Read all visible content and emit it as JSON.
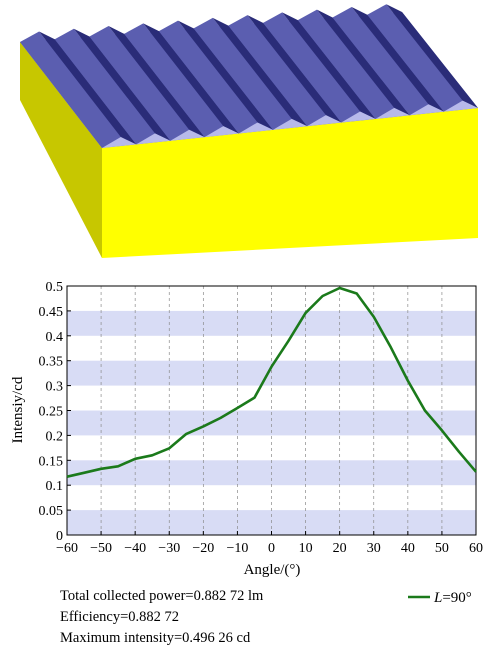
{
  "palette": {
    "grating_top": "#5b5eb0",
    "grating_groove_light": "#b7b9ea",
    "grating_groove_dark": "#2a2c78",
    "block_front": "#ffff00",
    "block_side": "#c7c700",
    "band_fill": "#d8dcf5",
    "line_color": "#1b7a1b"
  },
  "chart_data": {
    "type": "line",
    "xlabel": "Angle/(°)",
    "ylabel": "Intensiy/cd",
    "xlim": [
      -60,
      60
    ],
    "ylim": [
      0,
      0.5
    ],
    "xticks": [
      "-60",
      "-50",
      "-40",
      "-30",
      "-20",
      "-10",
      "0",
      "10",
      "20",
      "30",
      "40",
      "50",
      "60"
    ],
    "yticks": [
      "0",
      "0.05",
      "0.1",
      "0.15",
      "0.2",
      "0.25",
      "0.3",
      "0.35",
      "0.4",
      "0.45",
      "0.5"
    ],
    "grid": "alternating horizontal bands, vertical dashed lines",
    "legend_position": "bottom-right, below plot",
    "series": [
      {
        "name": "L=90°",
        "name_italic_part": "L",
        "name_rest": "=90°",
        "x": [
          -60,
          -55,
          -50,
          -45,
          -40,
          -35,
          -30,
          -25,
          -20,
          -15,
          -10,
          -5,
          0,
          5,
          10,
          15,
          20,
          25,
          30,
          35,
          40,
          45,
          50,
          55,
          60
        ],
        "y": [
          0.117,
          0.125,
          0.133,
          0.138,
          0.153,
          0.16,
          0.174,
          0.203,
          0.218,
          0.235,
          0.255,
          0.276,
          0.338,
          0.39,
          0.446,
          0.48,
          0.496,
          0.485,
          0.438,
          0.377,
          0.31,
          0.25,
          0.21,
          0.167,
          0.127
        ]
      }
    ]
  },
  "stats": {
    "total_power": "Total collected power=0.882 72 lm",
    "efficiency": "Efficiency=0.882 72",
    "max_intensity": "Maximum intensity=0.496 26 cd"
  }
}
